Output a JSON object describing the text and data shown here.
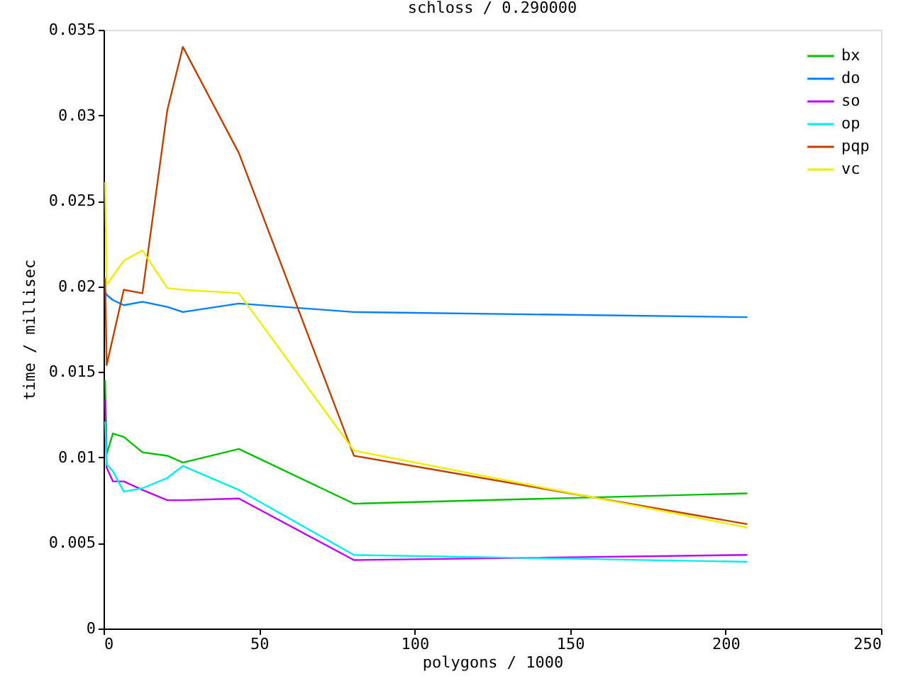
{
  "chart_data": {
    "type": "line",
    "title": "schloss / 0.290000",
    "xlabel": "polygons / 1000",
    "ylabel": "time / millisec",
    "x": [
      0.5,
      1,
      3,
      6.5,
      12.5,
      20.5,
      25.5,
      43.5,
      80.5,
      207
    ],
    "series": [
      {
        "name": "bx",
        "color": "#00c000",
        "values": [
          0.0145,
          0.0102,
          0.0114,
          0.0112,
          0.0103,
          0.0101,
          0.0097,
          0.0105,
          0.0073,
          0.0079
        ]
      },
      {
        "name": "do",
        "color": "#0080ff",
        "values": [
          0.0197,
          0.0195,
          0.0192,
          0.0189,
          0.0191,
          0.0188,
          0.0185,
          0.019,
          0.0185,
          0.0182
        ]
      },
      {
        "name": "so",
        "color": "#c000ff",
        "values": [
          0.0134,
          0.0094,
          0.0086,
          0.0086,
          0.0081,
          0.0075,
          0.0075,
          0.0076,
          0.004,
          0.0043
        ]
      },
      {
        "name": "op",
        "color": "#00eeee",
        "values": [
          0.0121,
          0.0096,
          0.0092,
          0.008,
          0.0082,
          0.0088,
          0.0095,
          0.0081,
          0.0043,
          0.0039
        ]
      },
      {
        "name": "pqp",
        "color": "#c04000",
        "values": [
          0.0205,
          0.0154,
          0.017,
          0.0198,
          0.0196,
          0.0303,
          0.034,
          0.0278,
          0.0101,
          0.0061
        ]
      },
      {
        "name": "vc",
        "color": "#eeee00",
        "values": [
          0.0261,
          0.0201,
          0.0206,
          0.0215,
          0.0221,
          0.0199,
          0.0198,
          0.0196,
          0.0104,
          0.0059
        ]
      }
    ],
    "xlim": [
      0,
      250
    ],
    "xticks": [
      0,
      50,
      100,
      150,
      200,
      250
    ],
    "ylim": [
      0,
      0.035
    ],
    "yticks": [
      0,
      0.005,
      0.01,
      0.015,
      0.02,
      0.025,
      0.03,
      0.035
    ],
    "legend": "top right",
    "grid": false,
    "marker": "none",
    "line_style": "solid"
  }
}
